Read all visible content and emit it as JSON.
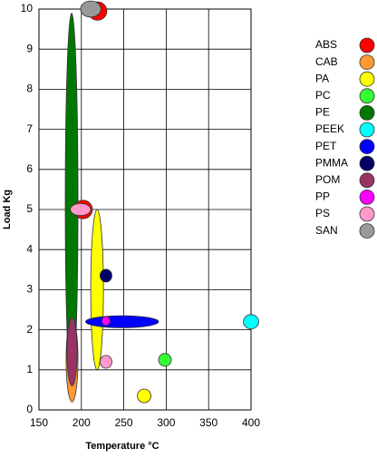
{
  "chart_data": {
    "type": "range-ellipse",
    "x_label": "Temperature °C",
    "y_label": "Load Kg",
    "xlim": [
      150,
      400
    ],
    "xticks": [
      150,
      200,
      250,
      300,
      350,
      400
    ],
    "ylim": [
      0,
      10
    ],
    "yticks": [
      0,
      1,
      2,
      3,
      4,
      5,
      6,
      7,
      8,
      9,
      10
    ],
    "grid": true,
    "legend": "right",
    "series": [
      {
        "name": "ABS",
        "color": "#ff0000",
        "ellipses": [
          {
            "x": [
              208,
              230
            ],
            "y": [
              9.72,
              10.18
            ]
          },
          {
            "x": [
              191,
              213
            ],
            "y": [
              4.77,
              5.23
            ]
          }
        ]
      },
      {
        "name": "CAB",
        "color": "#ff9933",
        "ellipses": [
          {
            "x": [
              182,
              196
            ],
            "y": [
              0.2,
              2.3
            ]
          }
        ]
      },
      {
        "name": "PA",
        "color": "#ffff00",
        "ellipses": [
          {
            "x": [
              211,
              226
            ],
            "y": [
              1.0,
              5.0
            ]
          },
          {
            "x": [
              266,
              282
            ],
            "y": [
              0.18,
              0.52
            ]
          }
        ]
      },
      {
        "name": "PC",
        "color": "#33ff33",
        "ellipses": [
          {
            "x": [
              291,
              306
            ],
            "y": [
              1.09,
              1.41
            ]
          }
        ]
      },
      {
        "name": "PE",
        "color": "#007700",
        "ellipses": [
          {
            "x": [
              181,
              196
            ],
            "y": [
              0.5,
              9.9
            ]
          }
        ]
      },
      {
        "name": "PEEK",
        "color": "#00ffff",
        "ellipses": [
          {
            "x": [
              391,
              409
            ],
            "y": [
              2.02,
              2.38
            ]
          }
        ]
      },
      {
        "name": "PET",
        "color": "#0000ff",
        "ellipses": [
          {
            "x": [
              205,
              291
            ],
            "y": [
              2.05,
              2.35
            ]
          }
        ]
      },
      {
        "name": "PMMA",
        "color": "#000066",
        "ellipses": [
          {
            "x": [
              222,
              236
            ],
            "y": [
              3.19,
              3.51
            ]
          }
        ]
      },
      {
        "name": "POM",
        "color": "#993366",
        "ellipses": [
          {
            "x": [
              183,
              195
            ],
            "y": [
              0.6,
              2.3
            ]
          }
        ]
      },
      {
        "name": "PP",
        "color": "#ff00ff",
        "ellipses": [
          {
            "x": [
              224,
              234
            ],
            "y": [
              2.11,
              2.33
            ]
          }
        ]
      },
      {
        "name": "PS",
        "color": "#ff99cc",
        "ellipses": [
          {
            "x": [
              187,
              211
            ],
            "y": [
              4.85,
              5.15
            ]
          },
          {
            "x": [
              222,
              236
            ],
            "y": [
              1.04,
              1.36
            ]
          }
        ]
      },
      {
        "name": "SAN",
        "color": "#999999",
        "ellipses": [
          {
            "x": [
              199,
              223
            ],
            "y": [
              9.8,
              10.2
            ]
          }
        ]
      }
    ]
  }
}
